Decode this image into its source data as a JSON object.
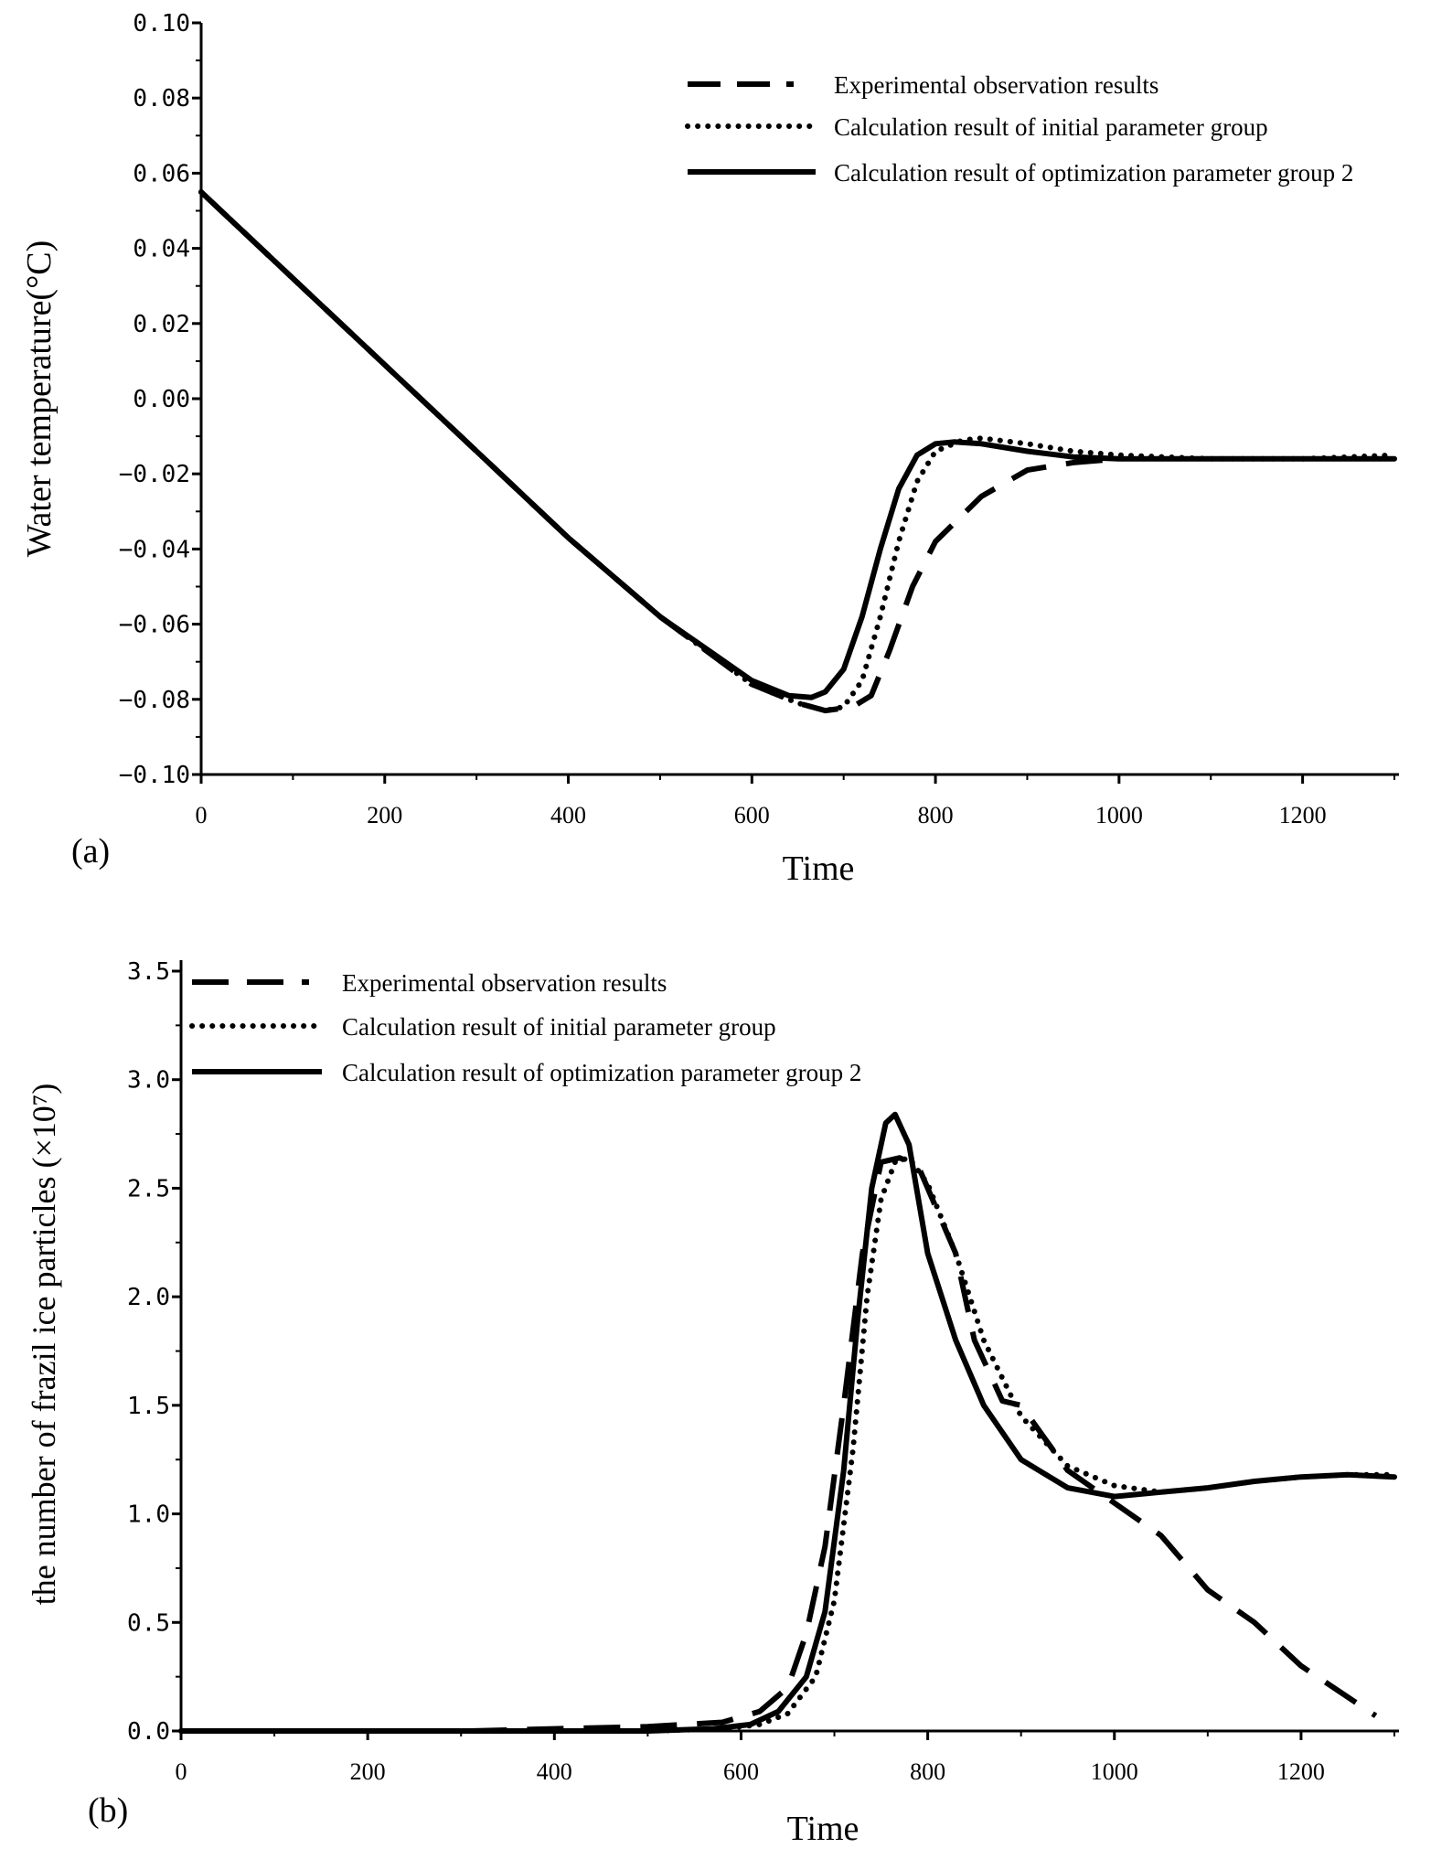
{
  "chart_data": [
    {
      "id": "a",
      "type": "line",
      "panel_label": "(a)",
      "title": "",
      "xlabel": "Time",
      "ylabel": "Water temperature(°C)",
      "xlim": [
        0,
        1300
      ],
      "ylim": [
        -0.1,
        0.1
      ],
      "xticks": [
        0,
        200,
        400,
        600,
        800,
        1000,
        1200
      ],
      "xtick_labels": [
        "0",
        "200",
        "400",
        "600",
        "800",
        "1000",
        "1200"
      ],
      "yticks": [
        -0.1,
        -0.08,
        -0.06,
        -0.04,
        -0.02,
        0.0,
        0.02,
        0.04,
        0.06,
        0.08,
        0.1
      ],
      "ytick_labels": [
        "−0.10",
        "−0.08",
        "−0.06",
        "−0.04",
        "−0.02",
        "0.00",
        "0.02",
        "0.04",
        "0.06",
        "0.08",
        "0.10"
      ],
      "grid": false,
      "legend_position": "top-right",
      "series": [
        {
          "name": "Experimental observation results",
          "style": "dashed",
          "x": [
            0,
            100,
            200,
            300,
            400,
            500,
            600,
            650,
            680,
            710,
            730,
            750,
            775,
            800,
            850,
            900,
            950,
            1000
          ],
          "y": [
            0.055,
            0.032,
            0.009,
            -0.014,
            -0.037,
            -0.058,
            -0.076,
            -0.081,
            -0.083,
            -0.082,
            -0.079,
            -0.067,
            -0.05,
            -0.038,
            -0.026,
            -0.019,
            -0.017,
            -0.016
          ]
        },
        {
          "name": "Calculation result of initial parameter group",
          "style": "dotted",
          "x": [
            0,
            100,
            200,
            300,
            400,
            500,
            600,
            650,
            680,
            700,
            720,
            740,
            760,
            780,
            800,
            830,
            850,
            900,
            950,
            1000,
            1100,
            1200,
            1300
          ],
          "y": [
            0.055,
            0.032,
            0.009,
            -0.014,
            -0.037,
            -0.058,
            -0.076,
            -0.081,
            -0.083,
            -0.082,
            -0.075,
            -0.058,
            -0.038,
            -0.022,
            -0.014,
            -0.011,
            -0.0105,
            -0.012,
            -0.014,
            -0.015,
            -0.016,
            -0.016,
            -0.015
          ]
        },
        {
          "name": "Calculation result of optimization parameter group 2",
          "style": "solid",
          "x": [
            0,
            100,
            200,
            300,
            400,
            500,
            600,
            640,
            665,
            680,
            700,
            720,
            740,
            760,
            780,
            800,
            820,
            850,
            900,
            950,
            1000,
            1100,
            1200,
            1300
          ],
          "y": [
            0.055,
            0.032,
            0.009,
            -0.014,
            -0.037,
            -0.058,
            -0.075,
            -0.079,
            -0.0795,
            -0.078,
            -0.072,
            -0.058,
            -0.04,
            -0.024,
            -0.015,
            -0.012,
            -0.0115,
            -0.012,
            -0.014,
            -0.0155,
            -0.016,
            -0.016,
            -0.016,
            -0.016
          ]
        }
      ]
    },
    {
      "id": "b",
      "type": "line",
      "panel_label": "(b)",
      "title": "",
      "xlabel": "Time",
      "ylabel": "the number of frazil ice particles (×10⁷)",
      "xlim": [
        0,
        1300
      ],
      "ylim": [
        0,
        3.5
      ],
      "xticks": [
        0,
        200,
        400,
        600,
        800,
        1000,
        1200
      ],
      "xtick_labels": [
        "0",
        "200",
        "400",
        "600",
        "800",
        "1000",
        "1200"
      ],
      "yticks": [
        0.0,
        0.5,
        1.0,
        1.5,
        2.0,
        2.5,
        3.0,
        3.5
      ],
      "ytick_labels": [
        "0.0",
        "0.5",
        "1.0",
        "1.5",
        "2.0",
        "2.5",
        "3.0",
        "3.5"
      ],
      "grid": false,
      "legend_position": "top-left",
      "series": [
        {
          "name": "Experimental observation results",
          "style": "dashed",
          "x": [
            310,
            400,
            500,
            580,
            620,
            650,
            670,
            690,
            710,
            730,
            750,
            770,
            790,
            810,
            830,
            850,
            880,
            900,
            950,
            1000,
            1050,
            1100,
            1150,
            1200,
            1280
          ],
          "y": [
            0.0,
            0.01,
            0.02,
            0.04,
            0.09,
            0.2,
            0.45,
            0.85,
            1.5,
            2.2,
            2.62,
            2.64,
            2.6,
            2.4,
            2.2,
            1.8,
            1.52,
            1.5,
            1.2,
            1.05,
            0.9,
            0.65,
            0.5,
            0.3,
            0.07
          ]
        },
        {
          "name": "Calculation result of initial parameter group",
          "style": "dotted",
          "x": [
            0,
            500,
            580,
            620,
            650,
            680,
            700,
            720,
            735,
            750,
            765,
            780,
            800,
            830,
            860,
            900,
            950,
            1000,
            1050,
            1100,
            1150,
            1200,
            1250,
            1300
          ],
          "y": [
            0.0,
            0.0,
            0.01,
            0.03,
            0.08,
            0.25,
            0.6,
            1.3,
            2.0,
            2.45,
            2.62,
            2.64,
            2.52,
            2.2,
            1.8,
            1.45,
            1.22,
            1.13,
            1.1,
            1.12,
            1.15,
            1.17,
            1.18,
            1.18
          ]
        },
        {
          "name": "Calculation result of optimization parameter group 2",
          "style": "solid",
          "x": [
            0,
            500,
            570,
            610,
            640,
            670,
            690,
            710,
            725,
            740,
            755,
            765,
            780,
            800,
            830,
            860,
            900,
            950,
            1000,
            1050,
            1100,
            1150,
            1200,
            1250,
            1300
          ],
          "y": [
            0.0,
            0.0,
            0.01,
            0.03,
            0.09,
            0.25,
            0.55,
            1.2,
            1.9,
            2.5,
            2.8,
            2.84,
            2.7,
            2.2,
            1.8,
            1.5,
            1.25,
            1.12,
            1.08,
            1.1,
            1.12,
            1.15,
            1.17,
            1.18,
            1.17
          ]
        }
      ]
    }
  ]
}
